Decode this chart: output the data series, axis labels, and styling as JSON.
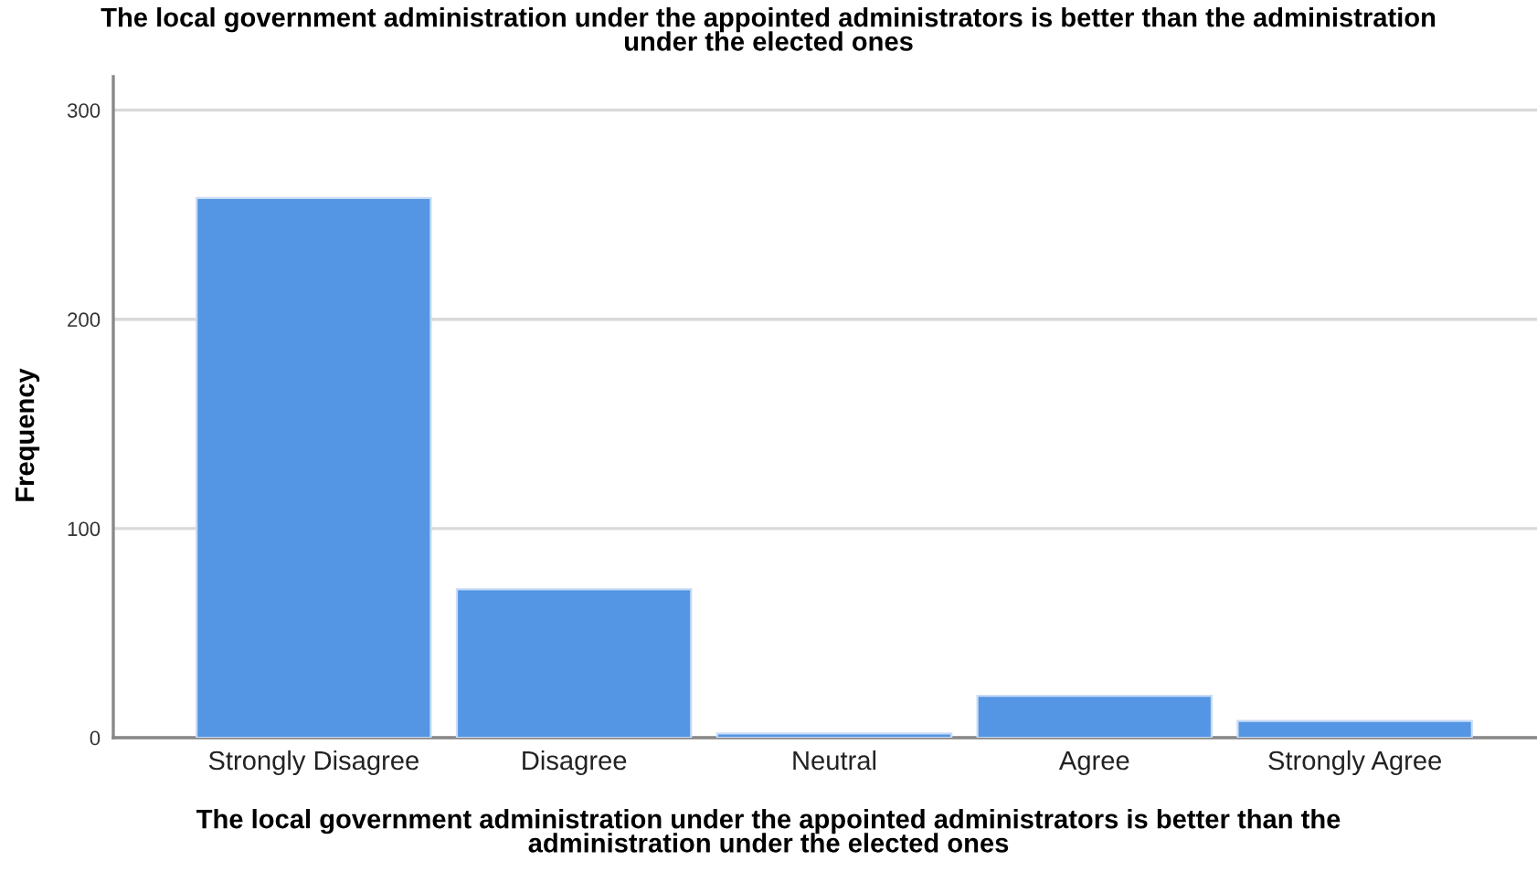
{
  "chart_data": {
    "type": "bar",
    "title": "The local government administration under the appointed administrators is better than the administration\nunder the elected ones",
    "xlabel": "The local government administration under the appointed administrators is better than the\nadministration under the elected ones",
    "ylabel": "Frequency",
    "categories": [
      "Strongly Disagree",
      "Disagree",
      "Neutral",
      "Agree",
      "Strongly Agree"
    ],
    "values": [
      258,
      71,
      2,
      20,
      8
    ],
    "color": "#5596e4",
    "ylim": [
      0,
      316
    ],
    "yticks": [
      0,
      100,
      200,
      300
    ],
    "grid": "y",
    "legend": false
  }
}
